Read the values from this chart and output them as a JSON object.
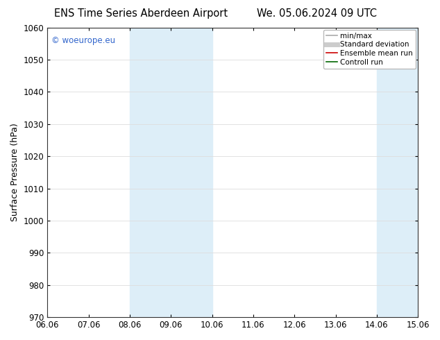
{
  "title_left": "ENS Time Series Aberdeen Airport",
  "title_right": "We. 05.06.2024 09 UTC",
  "ylabel": "Surface Pressure (hPa)",
  "ylim": [
    970,
    1060
  ],
  "yticks": [
    970,
    980,
    990,
    1000,
    1010,
    1020,
    1030,
    1040,
    1050,
    1060
  ],
  "xlim_start": 0,
  "xlim_end": 9,
  "xtick_labels": [
    "06.06",
    "07.06",
    "08.06",
    "09.06",
    "10.06",
    "11.06",
    "12.06",
    "13.06",
    "14.06",
    "15.06"
  ],
  "xtick_positions": [
    0,
    1,
    2,
    3,
    4,
    5,
    6,
    7,
    8,
    9
  ],
  "shaded_bands": [
    {
      "xmin": 2,
      "xmax": 3,
      "color": "#ddeef8"
    },
    {
      "xmin": 3,
      "xmax": 4,
      "color": "#ddeef8"
    },
    {
      "xmin": 8,
      "xmax": 9,
      "color": "#ddeef8"
    }
  ],
  "watermark_text": "© woeurope.eu",
  "watermark_color": "#3366cc",
  "legend_entries": [
    {
      "label": "min/max",
      "color": "#aaaaaa",
      "lw": 1.2,
      "ls": "-"
    },
    {
      "label": "Standard deviation",
      "color": "#cccccc",
      "lw": 5,
      "ls": "-"
    },
    {
      "label": "Ensemble mean run",
      "color": "#cc0000",
      "lw": 1.2,
      "ls": "-"
    },
    {
      "label": "Controll run",
      "color": "#006600",
      "lw": 1.2,
      "ls": "-"
    }
  ],
  "bg_color": "#ffffff",
  "grid_color": "#dddddd",
  "tick_label_fontsize": 8.5,
  "title_fontsize": 10.5
}
